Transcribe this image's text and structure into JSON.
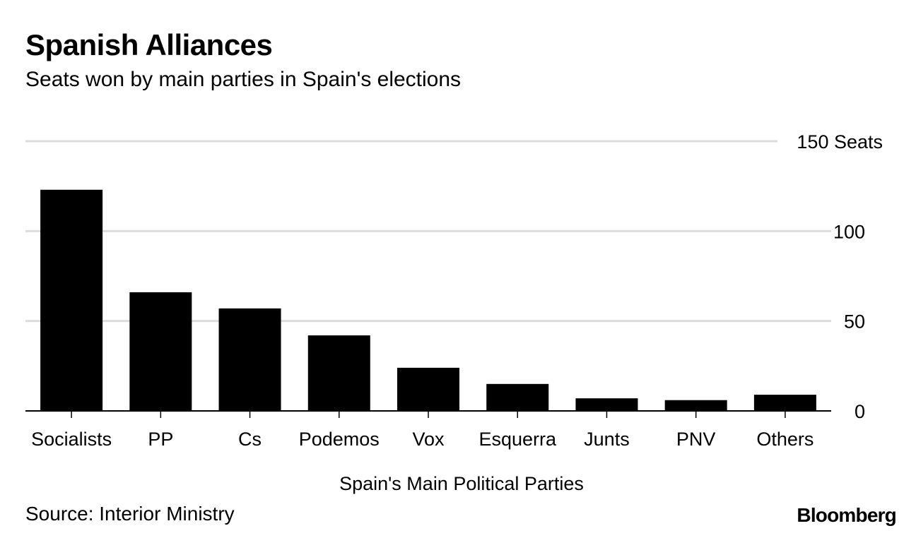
{
  "chart_data": {
    "type": "bar",
    "title": "Spanish Alliances",
    "subtitle": "Seats won by main parties in Spain's elections",
    "xlabel": "Spain's Main Political Parties",
    "ylabel": "",
    "y_unit_label": "Seats",
    "ylim": [
      0,
      150
    ],
    "yticks": [
      0,
      50,
      100,
      150
    ],
    "ytick_labels": [
      "0",
      "50",
      "100",
      "150 Seats"
    ],
    "categories": [
      "Socialists",
      "PP",
      "Cs",
      "Podemos",
      "Vox",
      "Esquerra",
      "Junts",
      "PNV",
      "Others"
    ],
    "values": [
      123,
      66,
      57,
      42,
      24,
      15,
      7,
      6,
      9
    ],
    "bar_color": "#000000",
    "grid_color": "#dcdcdc"
  },
  "footer": {
    "source": "Source: Interior Ministry",
    "brand": "Bloomberg"
  }
}
